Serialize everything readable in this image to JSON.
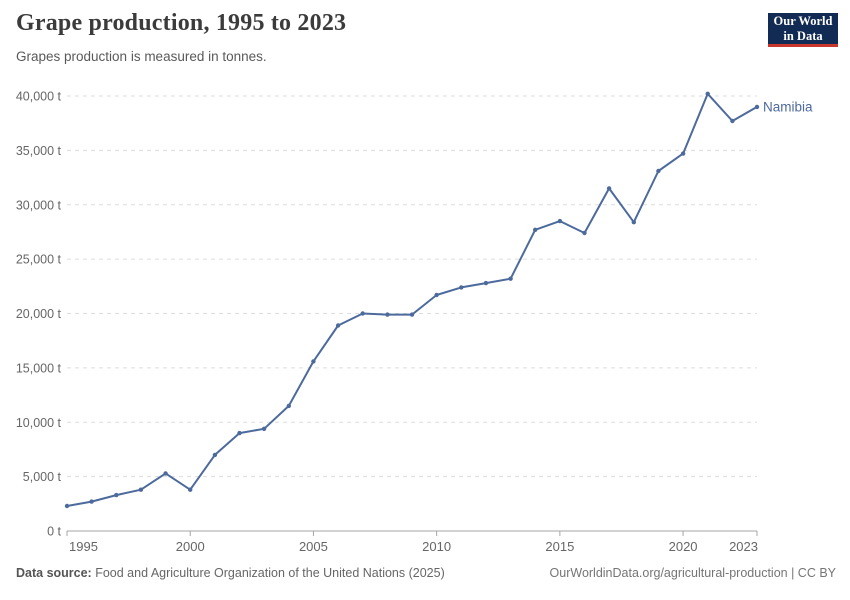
{
  "header": {
    "title": "Grape production, 1995 to 2023",
    "subtitle": "Grapes production is measured in tonnes.",
    "logo": {
      "line1": "Our World",
      "line2": "in Data"
    }
  },
  "chart_data": {
    "type": "line",
    "title": "Grape production, 1995 to 2023",
    "subtitle": "Grapes production is measured in tonnes.",
    "unit": "t",
    "x": [
      1995,
      1996,
      1997,
      1998,
      1999,
      2000,
      2001,
      2002,
      2003,
      2004,
      2005,
      2006,
      2007,
      2008,
      2009,
      2010,
      2011,
      2012,
      2013,
      2014,
      2015,
      2016,
      2017,
      2018,
      2019,
      2020,
      2021,
      2022,
      2023
    ],
    "series": [
      {
        "name": "Namibia",
        "color": "#4C6A9C",
        "values": [
          2300,
          2700,
          3300,
          3800,
          5300,
          3800,
          7000,
          9000,
          9400,
          11500,
          15600,
          18900,
          20000,
          19900,
          19900,
          21700,
          22400,
          22800,
          23200,
          27700,
          28500,
          27400,
          31500,
          28400,
          33100,
          34700,
          40200,
          37700,
          39000
        ]
      }
    ],
    "xlim": [
      1995,
      2023
    ],
    "ylim": [
      0,
      40000
    ],
    "xticks": [
      1995,
      2000,
      2005,
      2010,
      2015,
      2020,
      2023
    ],
    "yticks": [
      0,
      5000,
      10000,
      15000,
      20000,
      25000,
      30000,
      35000,
      40000
    ],
    "grid": true,
    "legend_position": "end-of-line-label"
  },
  "footer": {
    "source_label": "Data source:",
    "source_text": "Food and Agriculture Organization of the United Nations (2025)",
    "link": "OurWorldinData.org/agricultural-production | CC BY"
  },
  "colors": {
    "line": "#4C6A9C",
    "grid": "#dddddd",
    "axis": "#a5a5a5",
    "tick_text": "#666666",
    "title_text": "#3b3b3b",
    "logo_bg": "#122b54",
    "logo_accent": "#c8362c"
  }
}
